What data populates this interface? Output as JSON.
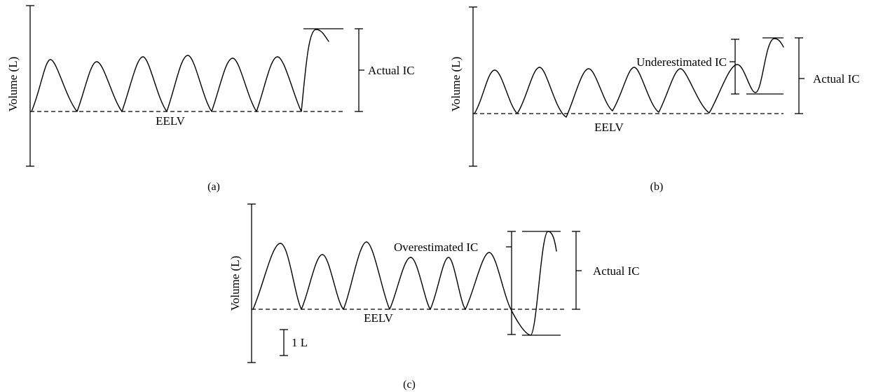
{
  "panels": {
    "a": {
      "label": "(a)",
      "y_axis_label": "Volume (L)",
      "baseline_label": "EELV",
      "actual_label": "Actual IC"
    },
    "b": {
      "label": "(b)",
      "y_axis_label": "Volume (L)",
      "baseline_label": "EELV",
      "actual_label": "Actual IC",
      "estimate_label": "Underestimated IC"
    },
    "c": {
      "label": "(c)",
      "y_axis_label": "Volume (L)",
      "baseline_label": "EELV",
      "actual_label": "Actual IC",
      "estimate_label": "Overestimated IC",
      "scale_label": "1 L"
    }
  }
}
